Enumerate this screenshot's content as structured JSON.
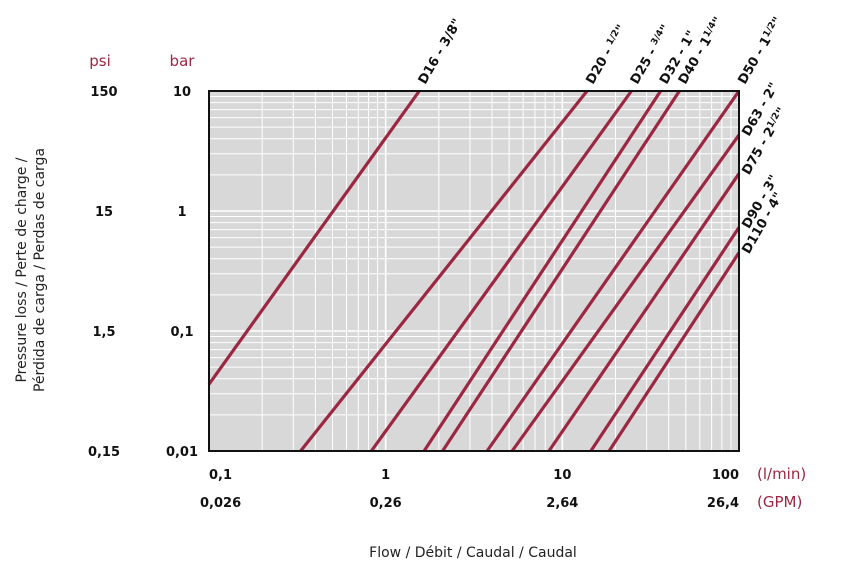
{
  "chart_data": {
    "type": "line",
    "x_scale": "log",
    "y_scale": "log",
    "xlabel": "Flow / Débit / Caudal / Caudal",
    "ylabel_line1": "Pressure loss / Perte de charge /",
    "ylabel_line2": "Pérdida de carga / Perdas de carga",
    "x_unit_primary": "(l/min)",
    "x_unit_secondary": "(GPM)",
    "y_unit_primary": "bar",
    "y_unit_secondary": "psi",
    "xlim": [
      0.1,
      100
    ],
    "ylim": [
      0.01,
      10
    ],
    "grid": true,
    "x_ticks": [
      {
        "value": 0.1,
        "label": "0,1",
        "gpm": "0,026"
      },
      {
        "value": 1,
        "label": "1",
        "gpm": "0,26"
      },
      {
        "value": 10,
        "label": "10",
        "gpm": "2,64"
      },
      {
        "value": 100,
        "label": "100",
        "gpm": "26,4"
      }
    ],
    "y_ticks": [
      {
        "value": 10,
        "label": "10",
        "psi": "150"
      },
      {
        "value": 1,
        "label": "1",
        "psi": "15"
      },
      {
        "value": 0.1,
        "label": "0,1",
        "psi": "1,5"
      },
      {
        "value": 0.01,
        "label": "0,01",
        "psi": "0,15"
      }
    ],
    "series": [
      {
        "name": "D16 - 3/8\"",
        "label_main": "D16 - 3/8",
        "label_frac": "",
        "x": [
          0.1,
          1.55
        ],
        "y": [
          0.036,
          10
        ]
      },
      {
        "name": "D20 - 1/2\"",
        "label_main": "D20 - ",
        "label_frac": "1/2",
        "x": [
          0.33,
          13.8
        ],
        "y": [
          0.01,
          10
        ]
      },
      {
        "name": "D25 - 3/4\"",
        "label_main": "D25 - ",
        "label_frac": "3/4",
        "x": [
          0.83,
          24.6
        ],
        "y": [
          0.01,
          10
        ]
      },
      {
        "name": "D32 - 1\"",
        "label_main": "D32 - 1",
        "label_frac": "",
        "x": [
          1.65,
          36
        ],
        "y": [
          0.01,
          10
        ]
      },
      {
        "name": "D40 - 1 1/4\"",
        "label_main": "D40 - 1",
        "label_frac": "1/4",
        "x": [
          2.1,
          46
        ],
        "y": [
          0.01,
          10
        ]
      },
      {
        "name": "D50 - 1 1/2\"",
        "label_main": "D50 - 1",
        "label_frac": "1/2",
        "x": [
          3.75,
          100
        ],
        "y": [
          0.01,
          10
        ]
      },
      {
        "name": "D63 - 2\"",
        "label_main": "D63 - 2",
        "label_frac": "",
        "x": [
          5.2,
          100
        ],
        "y": [
          0.01,
          4.3
        ]
      },
      {
        "name": "D75 - 2 1/2\"",
        "label_main": "D75 - 2",
        "label_frac": "1/2",
        "x": [
          8.4,
          100
        ],
        "y": [
          0.01,
          2.05
        ]
      },
      {
        "name": "D90 - 3\"",
        "label_main": "D90 - 3",
        "label_frac": "",
        "x": [
          14.5,
          100
        ],
        "y": [
          0.01,
          0.73
        ]
      },
      {
        "name": "D110 - 4\"",
        "label_main": "D110 - 4",
        "label_frac": "",
        "x": [
          18.4,
          100
        ],
        "y": [
          0.01,
          0.45
        ]
      }
    ],
    "colors": {
      "curve": "#9b2742",
      "plot_bg": "#d8d8d8",
      "grid": "#ffffff",
      "frame": "#111111",
      "unit_text": "#9b2742"
    }
  }
}
